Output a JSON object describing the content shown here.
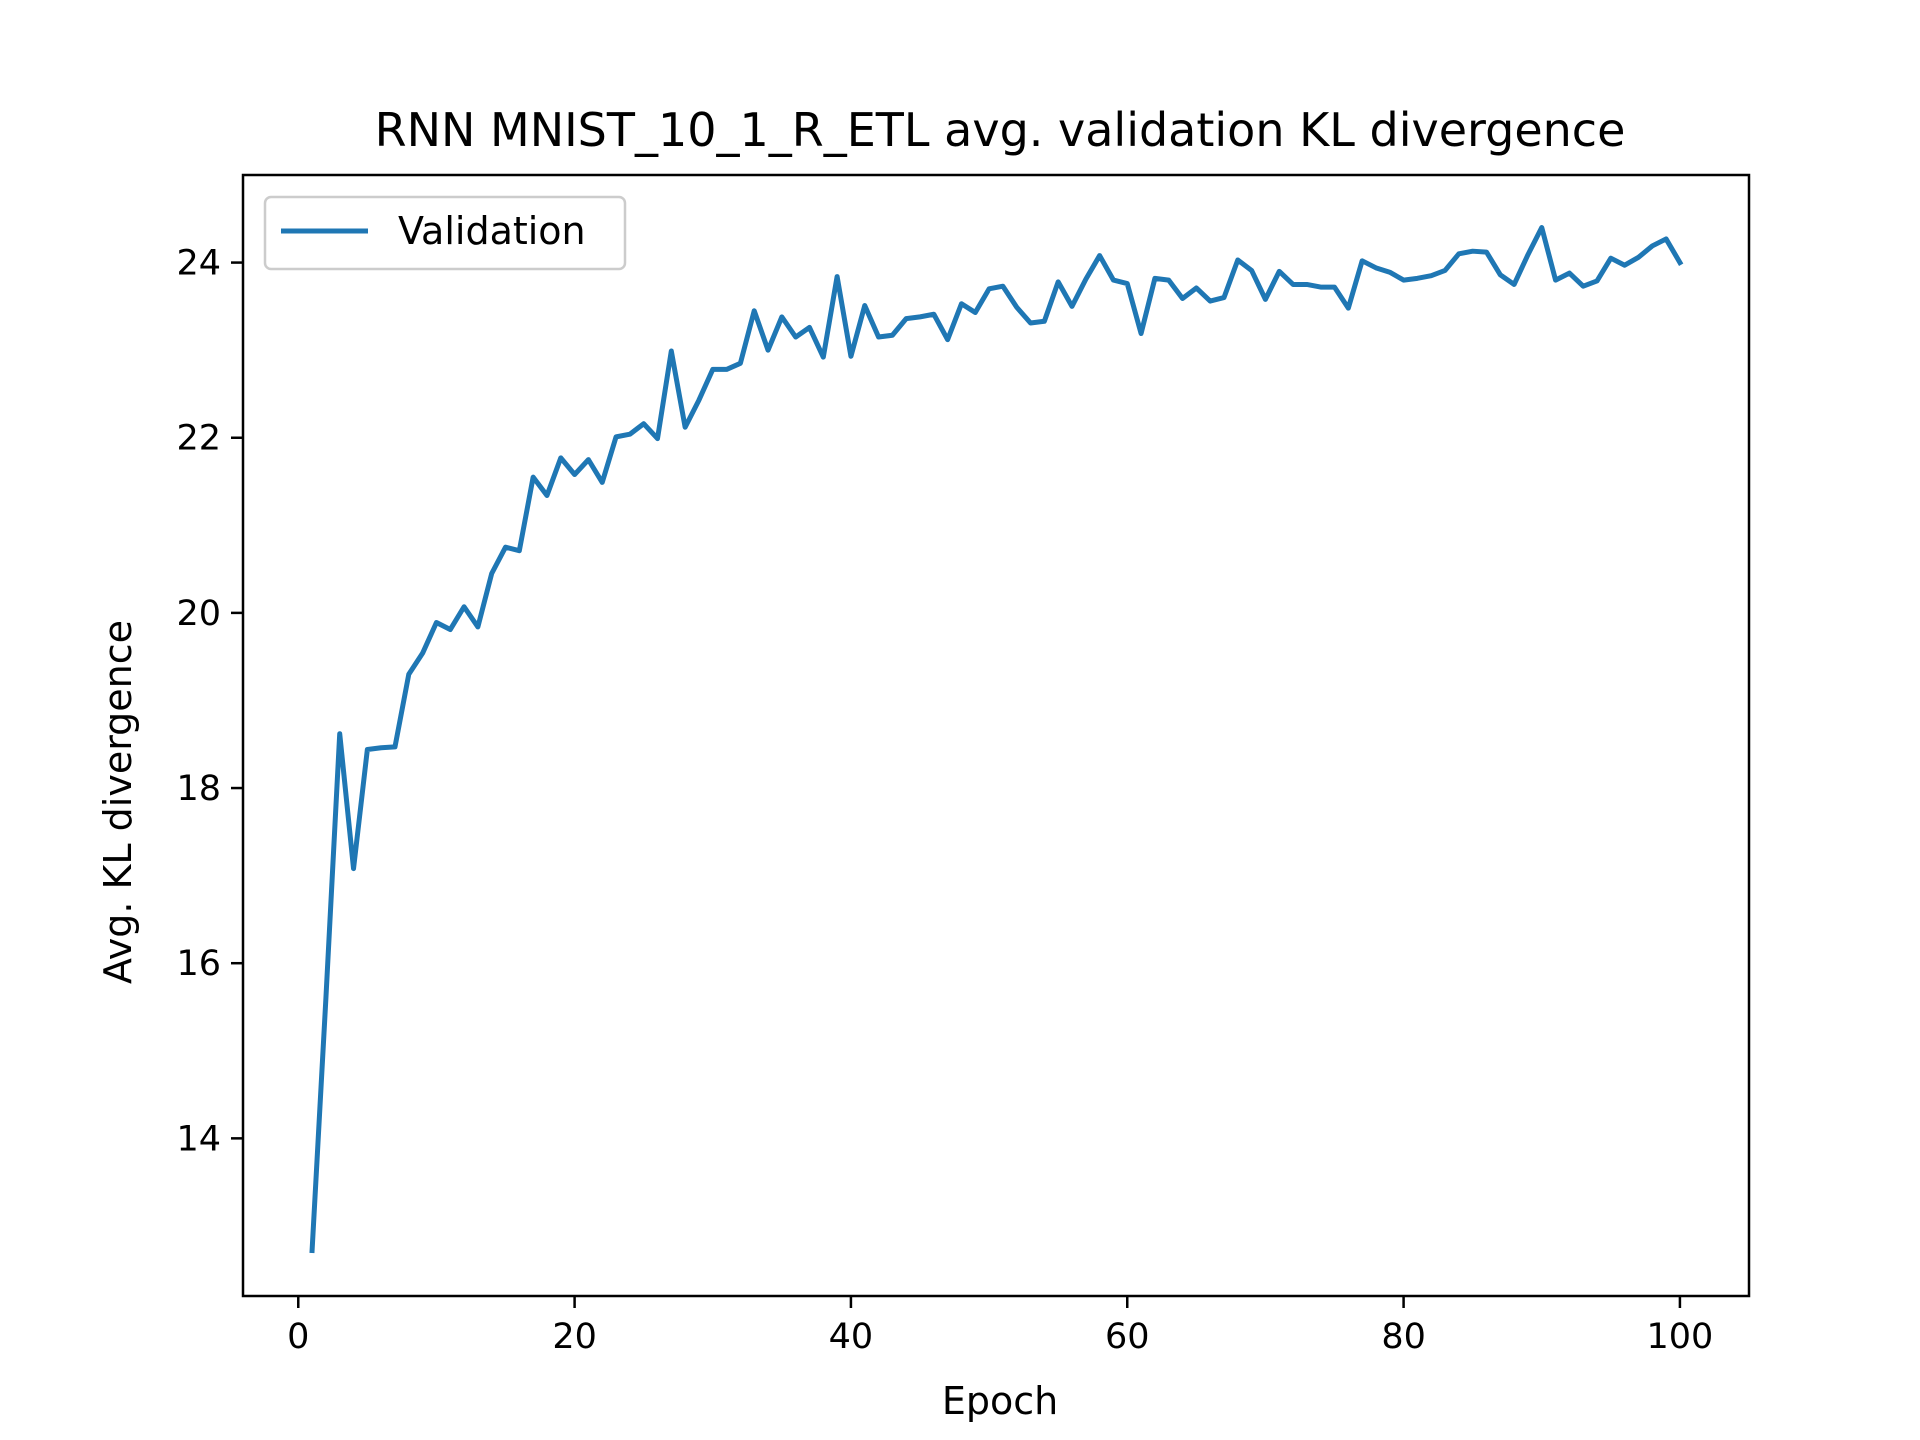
{
  "chart_data": {
    "type": "line",
    "title": "RNN MNIST_10_1_R_ETL avg. validation KL divergence",
    "xlabel": "Epoch",
    "ylabel": "Avg. KL divergence",
    "xlim": [
      -4,
      105
    ],
    "ylim": [
      12.2,
      25.0
    ],
    "xticks": [
      0,
      20,
      40,
      60,
      80,
      100
    ],
    "yticks": [
      14,
      16,
      18,
      20,
      22,
      24
    ],
    "grid": false,
    "legend_position": "top-left",
    "series": [
      {
        "name": "Validation",
        "color": "#1f77b4",
        "x": [
          1,
          2,
          3,
          4,
          5,
          6,
          7,
          8,
          9,
          10,
          11,
          12,
          13,
          14,
          15,
          16,
          17,
          18,
          19,
          20,
          21,
          22,
          23,
          24,
          25,
          26,
          27,
          28,
          29,
          30,
          31,
          32,
          33,
          34,
          35,
          36,
          37,
          38,
          39,
          40,
          41,
          42,
          43,
          44,
          45,
          46,
          47,
          48,
          49,
          50,
          51,
          52,
          53,
          54,
          55,
          56,
          57,
          58,
          59,
          60,
          61,
          62,
          63,
          64,
          65,
          66,
          67,
          68,
          69,
          70,
          71,
          72,
          73,
          74,
          75,
          76,
          77,
          78,
          79,
          80,
          81,
          82,
          83,
          84,
          85,
          86,
          87,
          88,
          89,
          90,
          91,
          92,
          93,
          94,
          95,
          96,
          97,
          98,
          99,
          100
        ],
        "y": [
          12.72,
          15.6,
          18.62,
          17.08,
          18.44,
          18.46,
          18.47,
          19.3,
          19.54,
          19.89,
          19.81,
          20.07,
          19.84,
          20.45,
          20.75,
          20.71,
          21.55,
          21.34,
          21.77,
          21.58,
          21.75,
          21.49,
          22.01,
          22.04,
          22.16,
          21.99,
          22.99,
          22.12,
          22.43,
          22.78,
          22.78,
          22.85,
          23.45,
          23.0,
          23.38,
          23.15,
          23.26,
          22.92,
          23.84,
          22.93,
          23.51,
          23.15,
          23.17,
          23.36,
          23.38,
          23.41,
          23.12,
          23.53,
          23.43,
          23.7,
          23.73,
          23.49,
          23.31,
          23.33,
          23.78,
          23.5,
          23.81,
          24.08,
          23.8,
          23.76,
          23.19,
          23.82,
          23.8,
          23.59,
          23.71,
          23.56,
          23.6,
          24.03,
          23.91,
          23.58,
          23.9,
          23.75,
          23.75,
          23.72,
          23.72,
          23.48,
          24.02,
          23.94,
          23.89,
          23.8,
          23.82,
          23.85,
          23.91,
          24.1,
          24.13,
          24.12,
          23.86,
          23.75,
          24.09,
          24.4,
          23.8,
          23.88,
          23.73,
          23.79,
          24.05,
          23.97,
          24.06,
          24.19,
          24.27,
          24.0
        ]
      }
    ]
  }
}
